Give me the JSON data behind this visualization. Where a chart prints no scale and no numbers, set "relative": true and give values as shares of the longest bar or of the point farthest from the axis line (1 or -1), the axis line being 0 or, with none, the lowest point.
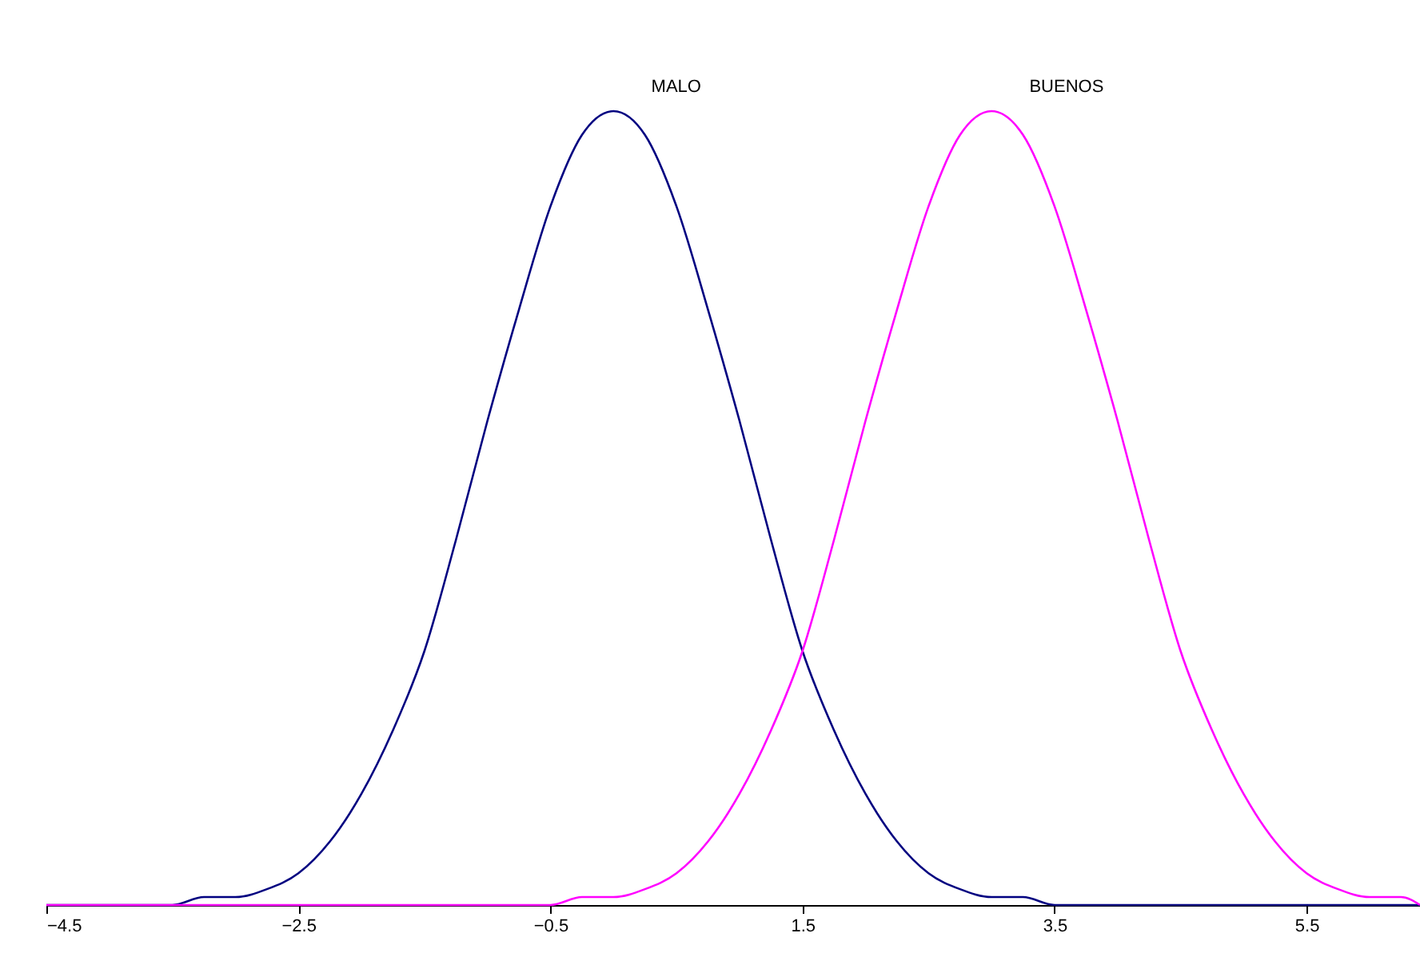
{
  "chart_data": {
    "type": "line",
    "relative": true,
    "legend": false,
    "grid": false,
    "marker": "none",
    "line_style": "solid",
    "xlim": [
      -4.5,
      6.4
    ],
    "xticks": [
      -4.5,
      -2.5,
      -0.5,
      1.5,
      3.5,
      5.5
    ],
    "series": [
      {
        "name": "MALO",
        "color": "#000080",
        "x": [
          -4.5,
          -3.5,
          -3.25,
          -3,
          -2.75,
          -2.5,
          -2.25,
          -2,
          -1.75,
          -1.5,
          -1.25,
          -1,
          -0.75,
          -0.5,
          -0.25,
          0,
          0.25,
          0.5,
          0.75,
          1,
          1.25,
          1.5,
          1.75,
          2,
          2.25,
          2.5,
          2.75,
          3,
          3.25,
          3.5,
          4.5,
          6.4
        ],
        "values": [
          0,
          0,
          0.01,
          0.01,
          0.02,
          0.04,
          0.08,
          0.14,
          0.22,
          0.32,
          0.46,
          0.61,
          0.75,
          0.88,
          0.97,
          1,
          0.97,
          0.88,
          0.75,
          0.61,
          0.46,
          0.32,
          0.22,
          0.14,
          0.08,
          0.04,
          0.02,
          0.01,
          0.01,
          0,
          0,
          0
        ]
      },
      {
        "name": "BUENOS",
        "color": "#ff00ff",
        "x": [
          -4.5,
          -0.5,
          -0.25,
          0,
          0.25,
          0.5,
          0.75,
          1,
          1.25,
          1.5,
          1.75,
          2,
          2.25,
          2.5,
          2.75,
          3,
          3.25,
          3.5,
          3.75,
          4,
          4.25,
          4.5,
          4.75,
          5,
          5.25,
          5.5,
          5.75,
          6,
          6.25,
          6.4
        ],
        "values": [
          0,
          0,
          0.01,
          0.01,
          0.02,
          0.04,
          0.08,
          0.14,
          0.22,
          0.32,
          0.46,
          0.61,
          0.75,
          0.88,
          0.97,
          1,
          0.97,
          0.88,
          0.75,
          0.61,
          0.46,
          0.32,
          0.22,
          0.14,
          0.08,
          0.04,
          0.02,
          0.01,
          0.01,
          0
        ]
      }
    ]
  }
}
